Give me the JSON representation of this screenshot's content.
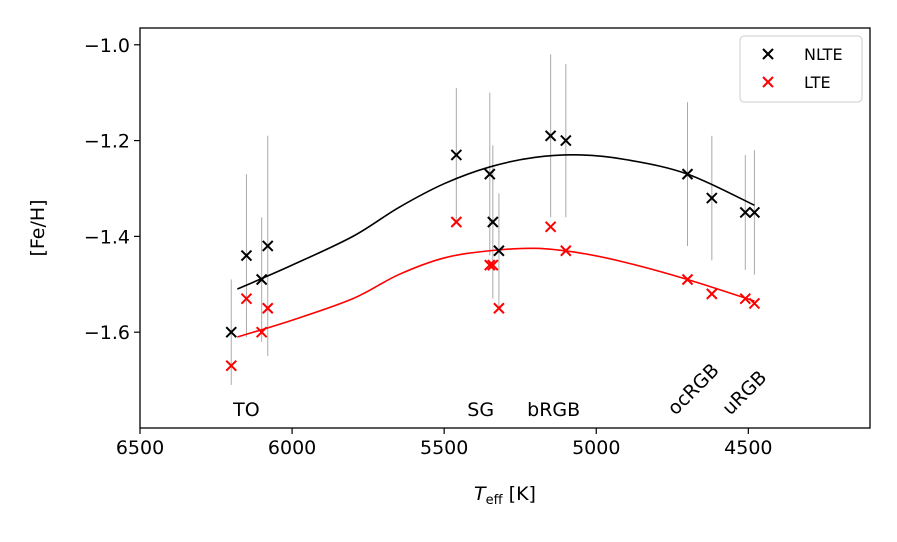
{
  "chart_data": {
    "type": "scatter",
    "xlabel_main": "T",
    "xlabel_sub": "eff",
    "xlabel_unit": " [K]",
    "ylabel": "[Fe/H]",
    "xlim": [
      6500,
      4100
    ],
    "ylim": [
      -1.8,
      -0.965
    ],
    "x_inverted": true,
    "xticks": [
      6500,
      6000,
      5500,
      5000,
      4500
    ],
    "xtick_labels": [
      "6500",
      "6000",
      "5500",
      "5000",
      "4500"
    ],
    "yticks": [
      -1.0,
      -1.2,
      -1.4,
      -1.6
    ],
    "ytick_labels": [
      "−1.0",
      "−1.2",
      "−1.4",
      "−1.6"
    ],
    "grid": false,
    "legend_position": "top-right",
    "errorbar_color": "#aaaaaa",
    "series": [
      {
        "name": "NLTE",
        "color": "#000000",
        "marker": "x",
        "x": [
          6200,
          6150,
          6100,
          6080,
          5460,
          5350,
          5340,
          5320,
          5150,
          5100,
          4700,
          4620,
          4510,
          4480
        ],
        "y": [
          -1.6,
          -1.44,
          -1.49,
          -1.42,
          -1.23,
          -1.27,
          -1.37,
          -1.43,
          -1.19,
          -1.2,
          -1.27,
          -1.32,
          -1.35,
          -1.35
        ],
        "yerr": [
          0.11,
          0.17,
          0.13,
          0.23,
          0.14,
          0.17,
          0.16,
          0.12,
          0.17,
          0.16,
          0.15,
          0.13,
          0.12,
          0.13
        ]
      },
      {
        "name": "LTE",
        "color": "#ff0000",
        "marker": "x",
        "x": [
          6200,
          6150,
          6100,
          6080,
          5460,
          5350,
          5340,
          5320,
          5150,
          5100,
          4700,
          4620,
          4510,
          4480
        ],
        "y": [
          -1.67,
          -1.53,
          -1.6,
          -1.55,
          -1.37,
          -1.46,
          -1.46,
          -1.55,
          -1.38,
          -1.43,
          -1.49,
          -1.52,
          -1.53,
          -1.54
        ]
      }
    ],
    "fit_curves": [
      {
        "series": "NLTE",
        "color": "#000000",
        "x": [
          6180,
          6000,
          5800,
          5650,
          5500,
          5350,
          5200,
          5050,
          4900,
          4700,
          4480
        ],
        "y": [
          -1.51,
          -1.46,
          -1.4,
          -1.34,
          -1.29,
          -1.255,
          -1.235,
          -1.23,
          -1.24,
          -1.27,
          -1.335
        ]
      },
      {
        "series": "LTE",
        "color": "#ff0000",
        "x": [
          6180,
          6000,
          5800,
          5650,
          5500,
          5350,
          5200,
          5050,
          4900,
          4700,
          4480
        ],
        "y": [
          -1.61,
          -1.575,
          -1.53,
          -1.48,
          -1.445,
          -1.43,
          -1.425,
          -1.435,
          -1.455,
          -1.49,
          -1.535
        ]
      }
    ],
    "annotations": [
      {
        "text": "TO",
        "x": 6150,
        "y": -1.775,
        "rotation": 0
      },
      {
        "text": "SG",
        "x": 5380,
        "y": -1.775,
        "rotation": 0
      },
      {
        "text": "bRGB",
        "x": 5140,
        "y": -1.775,
        "rotation": 0
      },
      {
        "text": "ocRGB",
        "x": 4700,
        "y": -1.775,
        "rotation": -45
      },
      {
        "text": "uRGB",
        "x": 4520,
        "y": -1.775,
        "rotation": -45
      }
    ]
  }
}
